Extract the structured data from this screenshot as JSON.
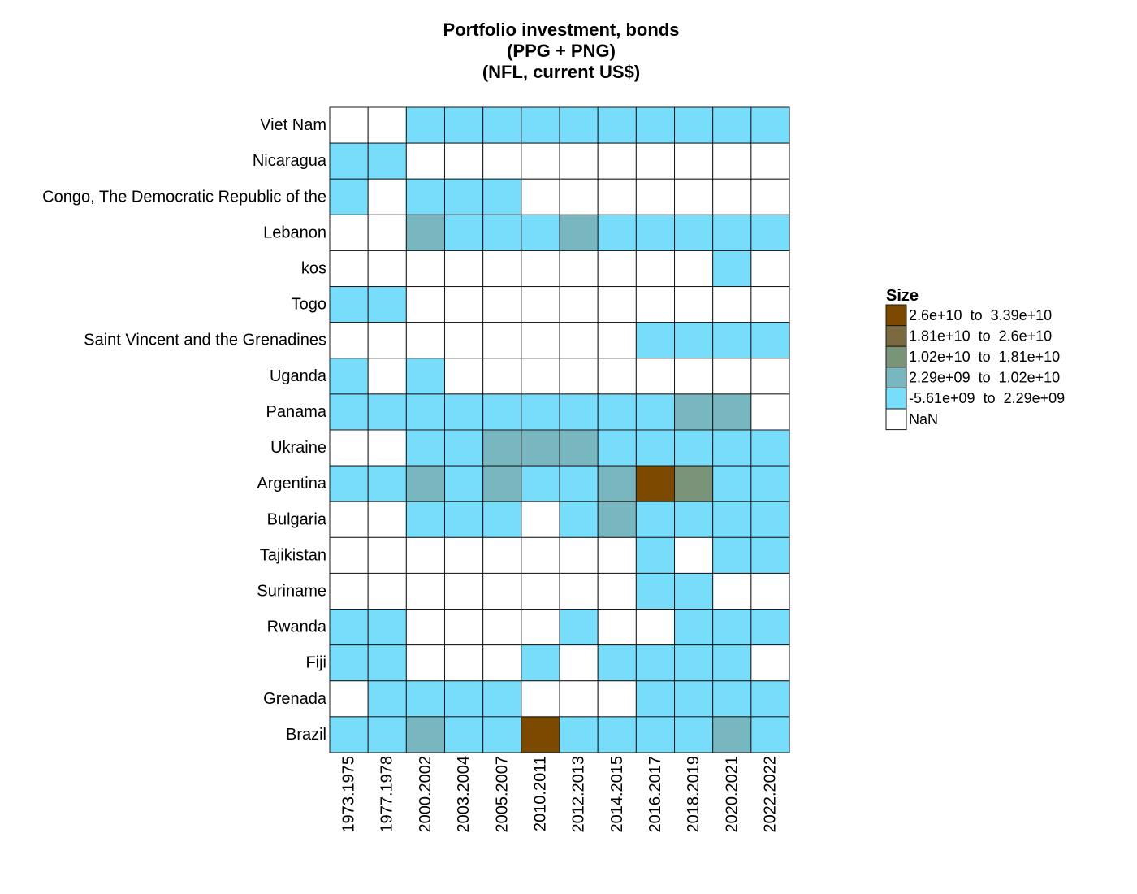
{
  "chart_data": {
    "type": "heatmap",
    "title": [
      "Portfolio investment, bonds",
      "(PPG + PNG)",
      "(NFL, current US$)"
    ],
    "rows": [
      "Viet Nam",
      "Nicaragua",
      "Congo, The Democratic Republic of the",
      "Lebanon",
      "kos",
      "Togo",
      "Saint Vincent and the Grenadines",
      "Uganda",
      "Panama",
      "Ukraine",
      "Argentina",
      "Bulgaria",
      "Tajikistan",
      "Suriname",
      "Rwanda",
      "Fiji",
      "Grenada",
      "Brazil"
    ],
    "columns": [
      "1973.1975",
      "1977.1978",
      "2000.2002",
      "2003.2004",
      "2005.2007",
      "2010.2011",
      "2012.2013",
      "2014.2015",
      "2016.2017",
      "2018.2019",
      "2020.2021",
      "2022.2022"
    ],
    "cell_bins": [
      [
        5,
        5,
        4,
        4,
        4,
        4,
        4,
        4,
        4,
        4,
        4,
        4
      ],
      [
        4,
        4,
        5,
        5,
        5,
        5,
        5,
        5,
        5,
        5,
        5,
        5
      ],
      [
        4,
        5,
        4,
        4,
        4,
        5,
        5,
        5,
        5,
        5,
        5,
        5
      ],
      [
        5,
        5,
        3,
        4,
        4,
        4,
        3,
        4,
        4,
        4,
        4,
        4
      ],
      [
        5,
        5,
        5,
        5,
        5,
        5,
        5,
        5,
        5,
        5,
        4,
        5
      ],
      [
        4,
        4,
        5,
        5,
        5,
        5,
        5,
        5,
        5,
        5,
        5,
        5
      ],
      [
        5,
        5,
        5,
        5,
        5,
        5,
        5,
        5,
        4,
        4,
        4,
        4
      ],
      [
        4,
        5,
        4,
        5,
        5,
        5,
        5,
        5,
        5,
        5,
        5,
        5
      ],
      [
        4,
        4,
        4,
        4,
        4,
        4,
        4,
        4,
        4,
        3,
        3,
        5
      ],
      [
        5,
        5,
        4,
        4,
        3,
        3,
        3,
        4,
        4,
        4,
        4,
        4
      ],
      [
        4,
        4,
        3,
        4,
        3,
        4,
        4,
        3,
        0,
        2,
        4,
        4
      ],
      [
        5,
        5,
        4,
        4,
        4,
        5,
        4,
        3,
        4,
        4,
        4,
        4
      ],
      [
        5,
        5,
        5,
        5,
        5,
        5,
        5,
        5,
        4,
        5,
        4,
        4
      ],
      [
        5,
        5,
        5,
        5,
        5,
        5,
        5,
        5,
        4,
        4,
        5,
        5
      ],
      [
        4,
        4,
        5,
        5,
        5,
        5,
        4,
        5,
        5,
        4,
        4,
        4
      ],
      [
        4,
        4,
        5,
        5,
        5,
        4,
        5,
        4,
        4,
        4,
        4,
        5
      ],
      [
        5,
        4,
        4,
        4,
        4,
        5,
        5,
        5,
        4,
        4,
        4,
        4
      ],
      [
        4,
        4,
        3,
        4,
        4,
        0,
        4,
        4,
        4,
        4,
        3,
        4
      ]
    ],
    "legend": {
      "title": "Size",
      "placement": "right",
      "bins": [
        {
          "label": "2.6e+10  to  3.39e+10",
          "color": "#7b4a00"
        },
        {
          "label": "1.81e+10  to  2.6e+10",
          "color": "#7a6a3e"
        },
        {
          "label": "1.02e+10  to  1.81e+10",
          "color": "#7a9479"
        },
        {
          "label": "2.29e+09  to  1.02e+10",
          "color": "#78b7c0"
        },
        {
          "label": "-5.61e+09  to  2.29e+09",
          "color": "#78dcfb"
        },
        {
          "label": "NaN",
          "color": "#ffffff"
        }
      ]
    }
  }
}
